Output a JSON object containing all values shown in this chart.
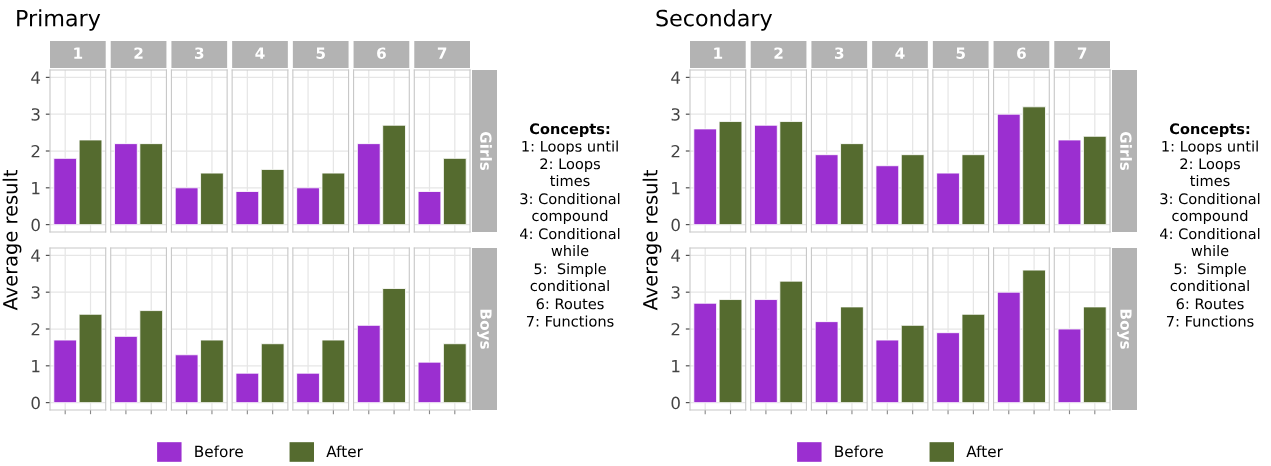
{
  "chart_data": [
    {
      "type": "bar",
      "title": "Primary",
      "ylabel": "Average result",
      "y2label": "Girls",
      "categories": [
        "1",
        "2",
        "3",
        "4",
        "5",
        "6",
        "7"
      ],
      "series": [
        {
          "name": "Before",
          "color": "#9b2fd0",
          "values": [
            1.8,
            2.2,
            1.0,
            0.9,
            1.0,
            2.2,
            0.9
          ]
        },
        {
          "name": "After",
          "color": "#556b2f",
          "values": [
            2.3,
            2.2,
            1.4,
            1.5,
            1.4,
            2.7,
            1.8
          ]
        }
      ],
      "ylim": [
        -0.2,
        4.2
      ],
      "yticks": [
        0,
        1,
        2,
        3,
        4
      ],
      "grid": true,
      "legend": "bottom",
      "annotations": [
        "Concepts:",
        "1: Loops until",
        "2: Loops\ntimes",
        "3: Conditional\ncompound",
        "4: Conditional\nwhile",
        "5:  Simple\nconditional",
        "6: Routes",
        "7: Functions"
      ]
    },
    {
      "type": "bar",
      "y2label": "Boys",
      "categories": [
        "1",
        "2",
        "3",
        "4",
        "5",
        "6",
        "7"
      ],
      "tick_labels": "y",
      "series": [
        {
          "color": "#9b2fd0",
          "values": [
            1.7,
            1.8,
            1.3,
            0.8,
            0.8,
            2.1,
            1.1
          ]
        },
        {
          "color": "#556b2f",
          "values": [
            2.4,
            2.5,
            1.7,
            1.6,
            1.7,
            3.1,
            1.6
          ]
        }
      ],
      "ylim": [
        -0.2,
        4.2
      ],
      "yticks": [
        0,
        1,
        2,
        3,
        4
      ],
      "grid": true
    },
    {
      "type": "bar",
      "title": "Secondary",
      "ylabel": "Average result",
      "y2label": "Girls",
      "categories": [
        "1",
        "2",
        "3",
        "4",
        "5",
        "6",
        "7"
      ],
      "series": [
        {
          "name": "Before",
          "color": "#9b2fd0",
          "values": [
            2.6,
            2.7,
            1.9,
            1.6,
            1.4,
            3.0,
            2.3
          ]
        },
        {
          "name": "After",
          "color": "#556b2f",
          "values": [
            2.8,
            2.8,
            2.2,
            1.9,
            1.9,
            3.2,
            2.4
          ]
        }
      ],
      "ylim": [
        -0.2,
        4.2
      ],
      "yticks": [
        0,
        1,
        2,
        3,
        4
      ],
      "grid": true,
      "legend": "bottom",
      "annotations": [
        "Concepts:",
        "1: Loops until",
        "2: Loops\ntimes",
        "3: Conditional\ncompound",
        "4: Conditional\nwhile",
        "5:  Simple\nconditional",
        "6: Routes",
        "7: Functions"
      ]
    },
    {
      "type": "bar",
      "y2label": "Boys",
      "categories": [
        "1",
        "2",
        "3",
        "4",
        "5",
        "6",
        "7"
      ],
      "tick_labels": "y",
      "series": [
        {
          "color": "#9b2fd0",
          "values": [
            2.7,
            2.8,
            2.2,
            1.7,
            1.9,
            3.0,
            2.0
          ]
        },
        {
          "color": "#556b2f",
          "values": [
            2.8,
            3.3,
            2.6,
            2.1,
            2.4,
            3.6,
            2.6
          ]
        }
      ],
      "ylim": [
        -0.2,
        4.2
      ],
      "yticks": [
        0,
        1,
        2,
        3,
        4
      ],
      "grid": true
    }
  ]
}
